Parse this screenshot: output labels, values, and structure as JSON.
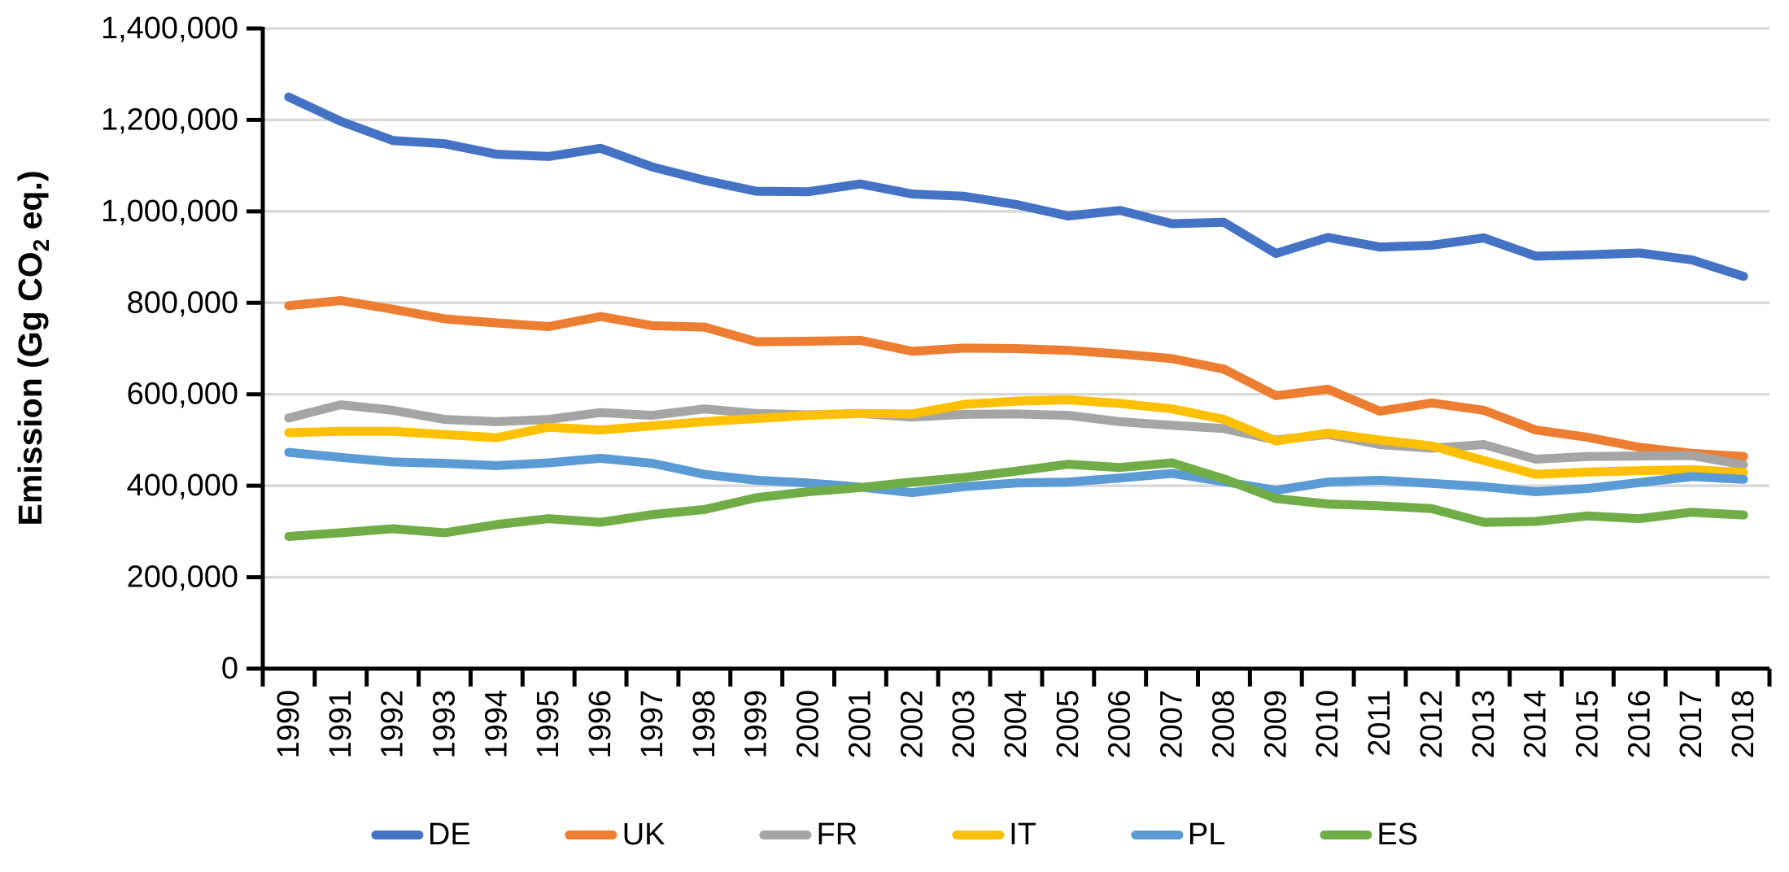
{
  "chart_data": {
    "type": "line",
    "title": "",
    "ylabel": "Emission (Gg CO2 eq.)",
    "ylabel_parts": {
      "prefix": "Emission (Gg CO",
      "sub": "2",
      "suffix": " eq.)"
    },
    "xlabel": "",
    "x": [
      1990,
      1991,
      1992,
      1993,
      1994,
      1995,
      1996,
      1997,
      1998,
      1999,
      2000,
      2001,
      2002,
      2003,
      2004,
      2005,
      2006,
      2007,
      2008,
      2009,
      2010,
      2011,
      2012,
      2013,
      2014,
      2015,
      2016,
      2017,
      2018
    ],
    "ylim": [
      0,
      1400000
    ],
    "ytick_step": 200000,
    "ytick_labels": [
      "0",
      "200,000",
      "400,000",
      "600,000",
      "800,000",
      "1,000,000",
      "1,200,000",
      "1,400,000"
    ],
    "grid": true,
    "legend_position": "bottom",
    "series": [
      {
        "name": "DE",
        "color": "#4472C4",
        "values": [
          1250000,
          1197000,
          1155000,
          1148000,
          1125000,
          1120000,
          1138000,
          1097000,
          1068000,
          1044000,
          1043000,
          1060000,
          1038000,
          1033000,
          1015000,
          990000,
          1002000,
          973000,
          976000,
          908000,
          943000,
          922000,
          926000,
          942000,
          902000,
          905000,
          909000,
          894000,
          858000
        ]
      },
      {
        "name": "UK",
        "color": "#ED7D31",
        "values": [
          794000,
          805000,
          786000,
          765000,
          756000,
          748000,
          770000,
          750000,
          747000,
          715000,
          716000,
          718000,
          694000,
          701000,
          700000,
          696000,
          688000,
          678000,
          655000,
          597000,
          611000,
          563000,
          581000,
          565000,
          522000,
          506000,
          484000,
          471000,
          464000
        ]
      },
      {
        "name": "FR",
        "color": "#A5A5A5",
        "values": [
          548000,
          577000,
          565000,
          545000,
          540000,
          545000,
          560000,
          554000,
          568000,
          558000,
          555000,
          558000,
          550000,
          556000,
          557000,
          554000,
          540000,
          532000,
          525000,
          500000,
          512000,
          490000,
          482000,
          490000,
          458000,
          464000,
          465000,
          466000,
          446000
        ]
      },
      {
        "name": "IT",
        "color": "#FFC000",
        "values": [
          516000,
          519000,
          519000,
          512000,
          505000,
          528000,
          522000,
          531000,
          540000,
          547000,
          554000,
          558000,
          557000,
          578000,
          585000,
          588000,
          580000,
          568000,
          545000,
          498000,
          515000,
          500000,
          487000,
          455000,
          425000,
          430000,
          433000,
          435000,
          429000
        ]
      },
      {
        "name": "PL",
        "color": "#5B9BD5",
        "values": [
          473000,
          462000,
          452000,
          449000,
          444000,
          450000,
          460000,
          449000,
          425000,
          412000,
          406000,
          397000,
          385000,
          398000,
          406000,
          408000,
          417000,
          427000,
          409000,
          390000,
          408000,
          412000,
          405000,
          398000,
          387000,
          394000,
          407000,
          420000,
          414000
        ]
      },
      {
        "name": "ES",
        "color": "#70AD47",
        "values": [
          289000,
          297000,
          306000,
          297000,
          315000,
          328000,
          320000,
          337000,
          348000,
          374000,
          387000,
          396000,
          408000,
          418000,
          432000,
          447000,
          440000,
          450000,
          415000,
          372000,
          360000,
          356000,
          350000,
          320000,
          322000,
          334000,
          328000,
          342000,
          336000
        ]
      }
    ]
  }
}
